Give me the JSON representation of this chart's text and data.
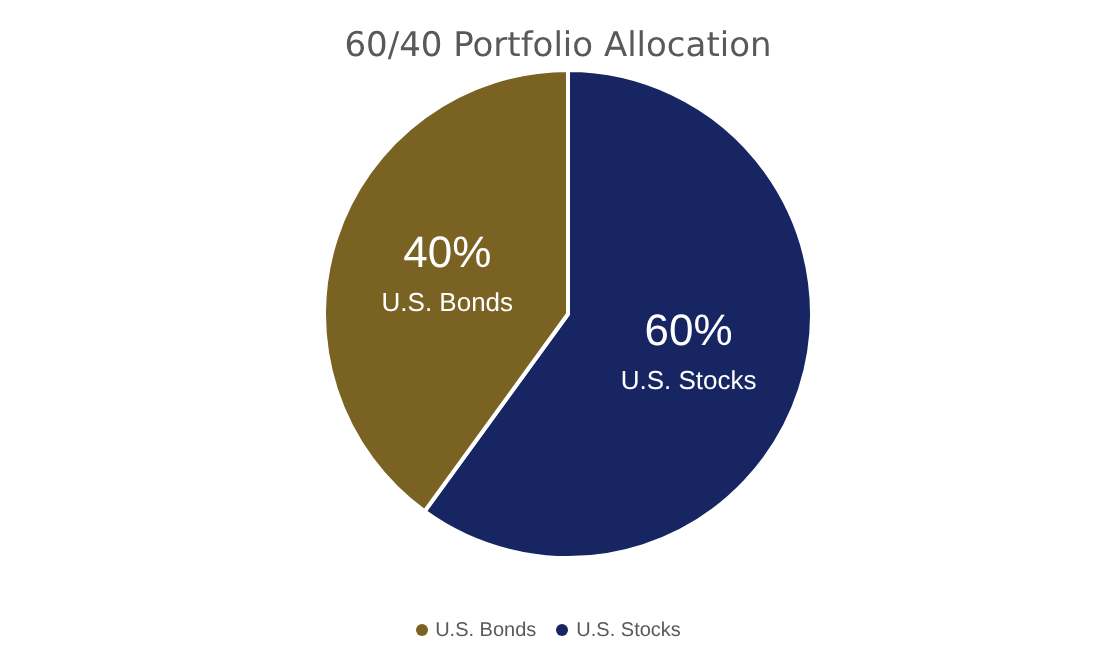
{
  "chart_data": {
    "type": "pie",
    "title": "60/40 Portfolio Allocation",
    "categories": [
      "U.S. Stocks",
      "U.S. Bonds"
    ],
    "values": [
      60,
      40
    ],
    "colors": [
      "#172663",
      "#7a6322"
    ],
    "value_labels": [
      "60%",
      "40%"
    ],
    "legend": "bottom"
  }
}
